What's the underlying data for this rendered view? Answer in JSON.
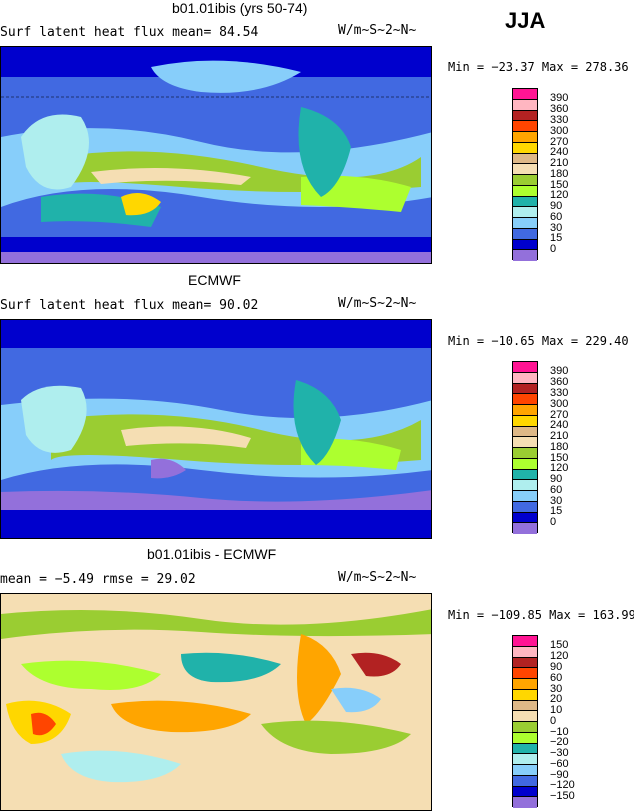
{
  "season": "JJA",
  "panels": [
    {
      "title": "b01.01ibis (yrs 50-74)",
      "left_text": "Surf latent heat flux   mean=  84.54",
      "units": "W/m~S~2~N~",
      "minmax": "Min = −23.37 Max = 278.36",
      "levels": [
        "390",
        "360",
        "330",
        "300",
        "270",
        "240",
        "210",
        "180",
        "150",
        "120",
        "90",
        "60",
        "30",
        "15",
        "0"
      ],
      "colors": [
        "#ff1493",
        "#ffb6c1",
        "#b22222",
        "#ff4500",
        "#ffa500",
        "#ffd700",
        "#deb887",
        "#f5deb3",
        "#9acd32",
        "#adff2f",
        "#20b2aa",
        "#afeeee",
        "#87cefa",
        "#4169e1",
        "#0000cd",
        "#9370db"
      ]
    },
    {
      "title": "ECMWF",
      "left_text": "Surf latent heat flux   mean=  90.02",
      "units": "W/m~S~2~N~",
      "minmax": "Min = −10.65 Max = 229.40",
      "levels": [
        "390",
        "360",
        "330",
        "300",
        "270",
        "240",
        "210",
        "180",
        "150",
        "120",
        "90",
        "60",
        "30",
        "15",
        "0"
      ],
      "colors": [
        "#ff1493",
        "#ffb6c1",
        "#b22222",
        "#ff4500",
        "#ffa500",
        "#ffd700",
        "#deb887",
        "#f5deb3",
        "#9acd32",
        "#adff2f",
        "#20b2aa",
        "#afeeee",
        "#87cefa",
        "#4169e1",
        "#0000cd",
        "#9370db"
      ]
    },
    {
      "title": "b01.01ibis - ECMWF",
      "left_text": "mean =   −5.49      rmse =  29.02",
      "units": "W/m~S~2~N~",
      "minmax": "Min = −109.85 Max = 163.99",
      "levels": [
        "150",
        "120",
        "90",
        "60",
        "30",
        "20",
        "10",
        "0",
        "−10",
        "−20",
        "−30",
        "−60",
        "−90",
        "−120",
        "−150"
      ],
      "colors": [
        "#ff1493",
        "#ffb6c1",
        "#b22222",
        "#ff4500",
        "#ffa500",
        "#ffd700",
        "#deb887",
        "#f5deb3",
        "#9acd32",
        "#adff2f",
        "#20b2aa",
        "#afeeee",
        "#87cefa",
        "#4169e1",
        "#0000cd",
        "#9370db"
      ]
    }
  ]
}
